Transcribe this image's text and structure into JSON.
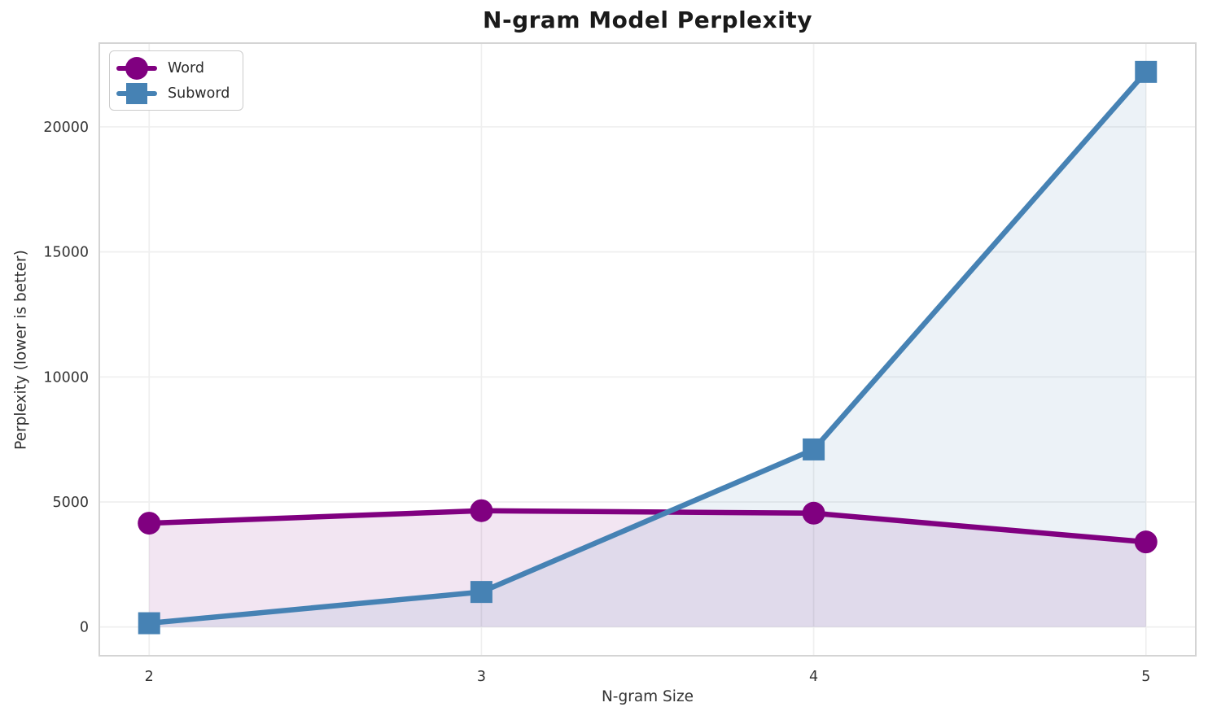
{
  "chart_data": {
    "type": "line",
    "title": "N-gram Model Perplexity",
    "xlabel": "N-gram Size",
    "ylabel": "Perplexity (lower is better)",
    "x": [
      2,
      3,
      4,
      5
    ],
    "series": [
      {
        "name": "Word",
        "marker": "circle",
        "color": "#800080",
        "fill_color": "rgba(128,0,128,0.10)",
        "values": [
          4150,
          4650,
          4550,
          3400
        ]
      },
      {
        "name": "Subword",
        "marker": "square",
        "color": "#4682B4",
        "fill_color": "rgba(70,130,180,0.10)",
        "values": [
          150,
          1400,
          7100,
          22200
        ]
      }
    ],
    "xticks": {
      "values": [
        2,
        3,
        4,
        5
      ],
      "labels": [
        "2",
        "3",
        "4",
        "5"
      ]
    },
    "yticks": {
      "values": [
        0,
        5000,
        10000,
        15000,
        20000
      ],
      "labels": [
        "0",
        "5000",
        "10000",
        "15000",
        "20000"
      ]
    },
    "xlim": [
      1.85,
      5.15
    ],
    "ylim": [
      -1150,
      23350
    ],
    "grid": true,
    "legend_position": "upper left",
    "area_fill_baseline": 0
  },
  "styles": {
    "grid_color": "#efefef",
    "spine_color": "#d4d4d4",
    "tick_text_color": "#333333",
    "title_color": "#1a1a1a",
    "legend_border_color": "#cccccc",
    "legend_bg": "#ffffff"
  }
}
